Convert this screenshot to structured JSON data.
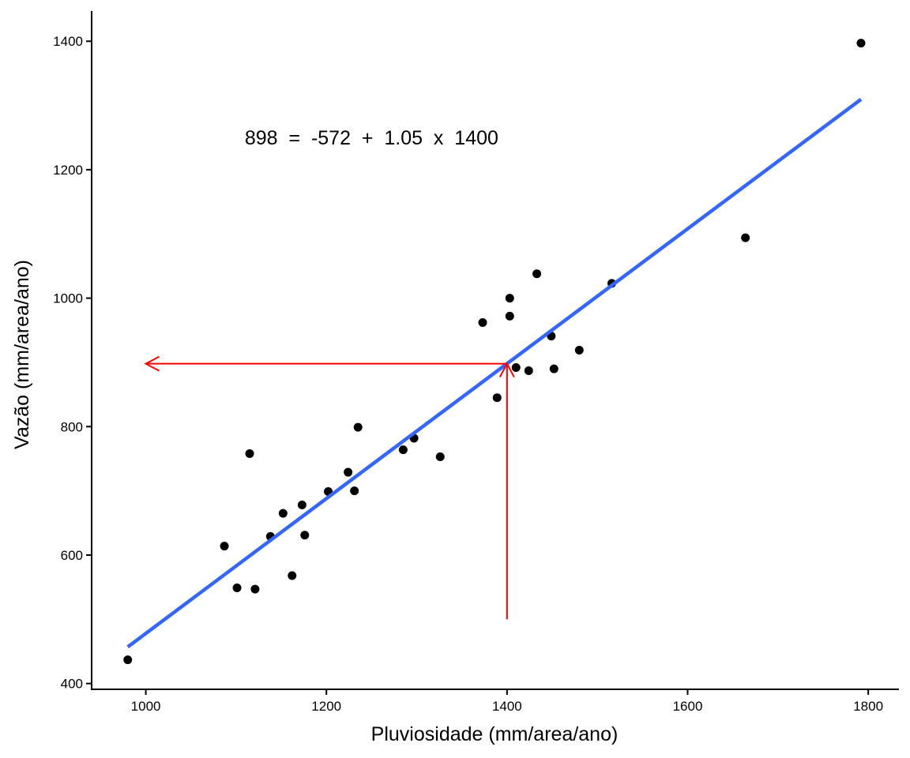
{
  "chart_data": {
    "type": "scatter",
    "title": "",
    "xlabel": "Pluviosidade (mm/area/ano)",
    "ylabel": "Vazão (mm/area/ano)",
    "xlim": [
      940,
      1834
    ],
    "ylim": [
      391,
      1447
    ],
    "xticks": [
      1000,
      1200,
      1400,
      1600,
      1800
    ],
    "yticks": [
      400,
      600,
      800,
      1000,
      1200,
      1400
    ],
    "grid": false,
    "points": [
      [
        980,
        437
      ],
      [
        1087,
        614
      ],
      [
        1101,
        549
      ],
      [
        1115,
        758
      ],
      [
        1121,
        547
      ],
      [
        1138,
        629
      ],
      [
        1152,
        665
      ],
      [
        1162,
        568
      ],
      [
        1173,
        678
      ],
      [
        1176,
        631
      ],
      [
        1202,
        699
      ],
      [
        1224,
        729
      ],
      [
        1231,
        700
      ],
      [
        1235,
        799
      ],
      [
        1285,
        764
      ],
      [
        1297,
        782
      ],
      [
        1326,
        753
      ],
      [
        1373,
        962
      ],
      [
        1389,
        845
      ],
      [
        1403,
        1000
      ],
      [
        1403,
        972
      ],
      [
        1410,
        892
      ],
      [
        1424,
        887
      ],
      [
        1433,
        1038
      ],
      [
        1449,
        941
      ],
      [
        1452,
        890
      ],
      [
        1480,
        919
      ],
      [
        1516,
        1023
      ],
      [
        1664,
        1094
      ],
      [
        1792,
        1397
      ]
    ],
    "regression": {
      "intercept": -572,
      "slope": 1.05,
      "x_range": [
        980,
        1792
      ],
      "color": "#3366FF"
    },
    "annotation": {
      "text": "898  =  -572  +  1.05  x  1400",
      "x": 1250,
      "y": 1250
    },
    "arrows": {
      "color": "#FF0000",
      "x_input": 1400,
      "y_output": 898,
      "y_start": 500,
      "x_end": 1000
    }
  }
}
